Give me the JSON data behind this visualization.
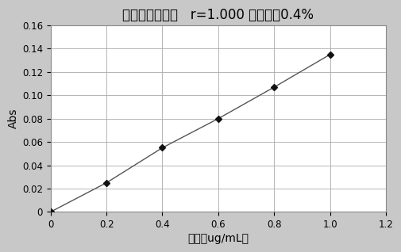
{
  "title": "钒元素工作曲线   r=1.000 线性误差0.4%",
  "xlabel": "浓度（ug/mL）",
  "ylabel": "Abs",
  "x_data": [
    0,
    0.2,
    0.4,
    0.6,
    0.8,
    1.0
  ],
  "y_data": [
    0,
    0.025,
    0.055,
    0.08,
    0.107,
    0.135
  ],
  "xlim": [
    0,
    1.2
  ],
  "ylim": [
    0,
    0.16
  ],
  "xticks": [
    0,
    0.2,
    0.4,
    0.6,
    0.8,
    1.0,
    1.2
  ],
  "yticks": [
    0,
    0.02,
    0.04,
    0.06,
    0.08,
    0.1,
    0.12,
    0.14,
    0.16
  ],
  "line_color": "#555555",
  "marker_color": "#111111",
  "bg_color": "#c8c8c8",
  "plot_bg_color": "#ffffff",
  "grid_color": "#aaaaaa",
  "title_fontsize": 12,
  "label_fontsize": 10,
  "tick_fontsize": 8.5
}
